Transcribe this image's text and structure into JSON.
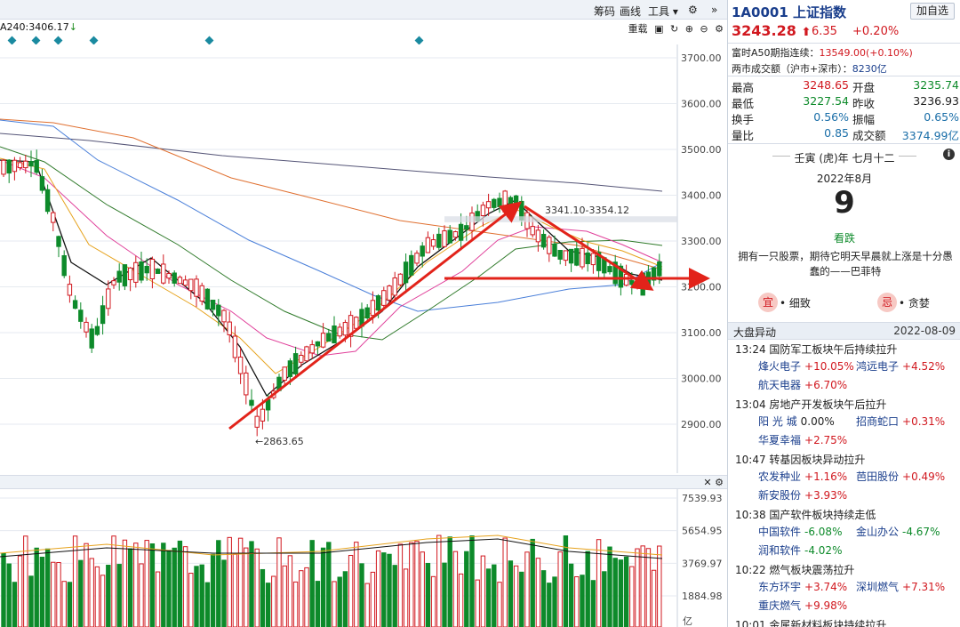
{
  "toolbar": {
    "chips_label": "筹码",
    "draw_label": "画线",
    "tools_label": "工具",
    "settings_glyph": "⚙",
    "expand_glyph": "»"
  },
  "ma_row": {
    "label": "A240:3406.17",
    "arrow": "↓",
    "reset_label": "重载",
    "lock_icon": "🔒",
    "gear_glyph": "⚙"
  },
  "price_axis": {
    "ticks": [
      "3700.00",
      "3600.00",
      "3500.00",
      "3400.00",
      "3300.00",
      "3200.00",
      "3100.00",
      "3000.00",
      "2900.00"
    ]
  },
  "annotations": {
    "range_label": "3341.10-3354.12",
    "low_label": "←2863.65"
  },
  "volume_axis": {
    "ticks": [
      "7539.93",
      "5654.95",
      "3769.97",
      "1884.98"
    ],
    "unit": "亿"
  },
  "quote": {
    "code": "1A0001",
    "name": "上证指数",
    "add_fav_label": "加自选",
    "price": "3243.28",
    "change": "6.35",
    "change_pct": "+0.20%",
    "a50_label": "富时A50期指连续：",
    "a50_value": "13549.00(+0.10%)",
    "turnover_label": "两市成交额（沪市+深市）：",
    "turnover_value": "8230亿",
    "stats": [
      {
        "k1": "最高",
        "v1": "3248.65",
        "c1": "red",
        "k2": "开盘",
        "v2": "3235.74",
        "c2": "green"
      },
      {
        "k1": "最低",
        "v1": "3227.54",
        "c1": "green",
        "k2": "昨收",
        "v2": "3236.93",
        "c2": "dark"
      },
      {
        "k1": "换手",
        "v1": "0.56%",
        "c1": "blue",
        "k2": "振幅",
        "v2": "0.65%",
        "c2": "blue"
      },
      {
        "k1": "量比",
        "v1": "0.85",
        "c1": "blue",
        "k2": "成交额",
        "v2": "3374.99亿",
        "c2": "blue"
      }
    ]
  },
  "calendar": {
    "lunar": "壬寅 (虎)年 七月十二",
    "month": "2022年8月",
    "day": "9",
    "tag": "看跌",
    "quote": "拥有一只股票，期待它明天早晨就上涨是十分愚蠢的——巴菲特",
    "yi_badge": "宜",
    "yi_text": "• 细致",
    "ji_badge": "忌",
    "ji_text": "• 贪婪"
  },
  "news": {
    "header": "大盘异动",
    "date": "2022-08-09",
    "items": [
      {
        "title": "13:24 国防军工板块午后持续拉升",
        "stocks": [
          {
            "name": "烽火电子",
            "chg": "+10.05%",
            "color": "red"
          },
          {
            "name": "鸿远电子",
            "chg": "+4.52%",
            "color": "red"
          },
          {
            "name": "航天电器",
            "chg": "+6.70%",
            "color": "red"
          }
        ]
      },
      {
        "title": "13:04 房地产开发板块午后拉升",
        "stocks": [
          {
            "name": "阳 光 城",
            "chg": "0.00%",
            "color": "dark"
          },
          {
            "name": "招商蛇口",
            "chg": "+0.31%",
            "color": "red"
          },
          {
            "name": "华夏幸福",
            "chg": "+2.75%",
            "color": "red"
          }
        ]
      },
      {
        "title": "10:47 转基因板块异动拉升",
        "stocks": [
          {
            "name": "农发种业",
            "chg": "+1.16%",
            "color": "red"
          },
          {
            "name": "芭田股份",
            "chg": "+0.49%",
            "color": "red"
          },
          {
            "name": "新安股份",
            "chg": "+3.93%",
            "color": "red"
          }
        ]
      },
      {
        "title": "10:38 国产软件板块持续走低",
        "stocks": [
          {
            "name": "中国软件",
            "chg": "-6.08%",
            "color": "green"
          },
          {
            "name": "金山办公",
            "chg": "-4.67%",
            "color": "green"
          },
          {
            "name": "润和软件",
            "chg": "-4.02%",
            "color": "green"
          }
        ]
      },
      {
        "title": "10:22 燃气板块震荡拉升",
        "stocks": [
          {
            "name": "东方环宇",
            "chg": "+3.74%",
            "color": "red"
          },
          {
            "name": "深圳燃气",
            "chg": "+7.31%",
            "color": "red"
          },
          {
            "name": "重庆燃气",
            "chg": "+9.98%",
            "color": "red"
          }
        ]
      },
      {
        "title": "10:01 金属新材料板块持续拉升",
        "stocks": []
      }
    ]
  },
  "colors": {
    "up": "#d1181f",
    "down": "#0d8a2a",
    "ma5": "#111111",
    "ma10": "#e6a21c",
    "ma20": "#e0409a",
    "ma60": "#2f7a2a",
    "ma120": "#4a7fd9",
    "ma240": "#e07030",
    "ma250": "#555577"
  }
}
